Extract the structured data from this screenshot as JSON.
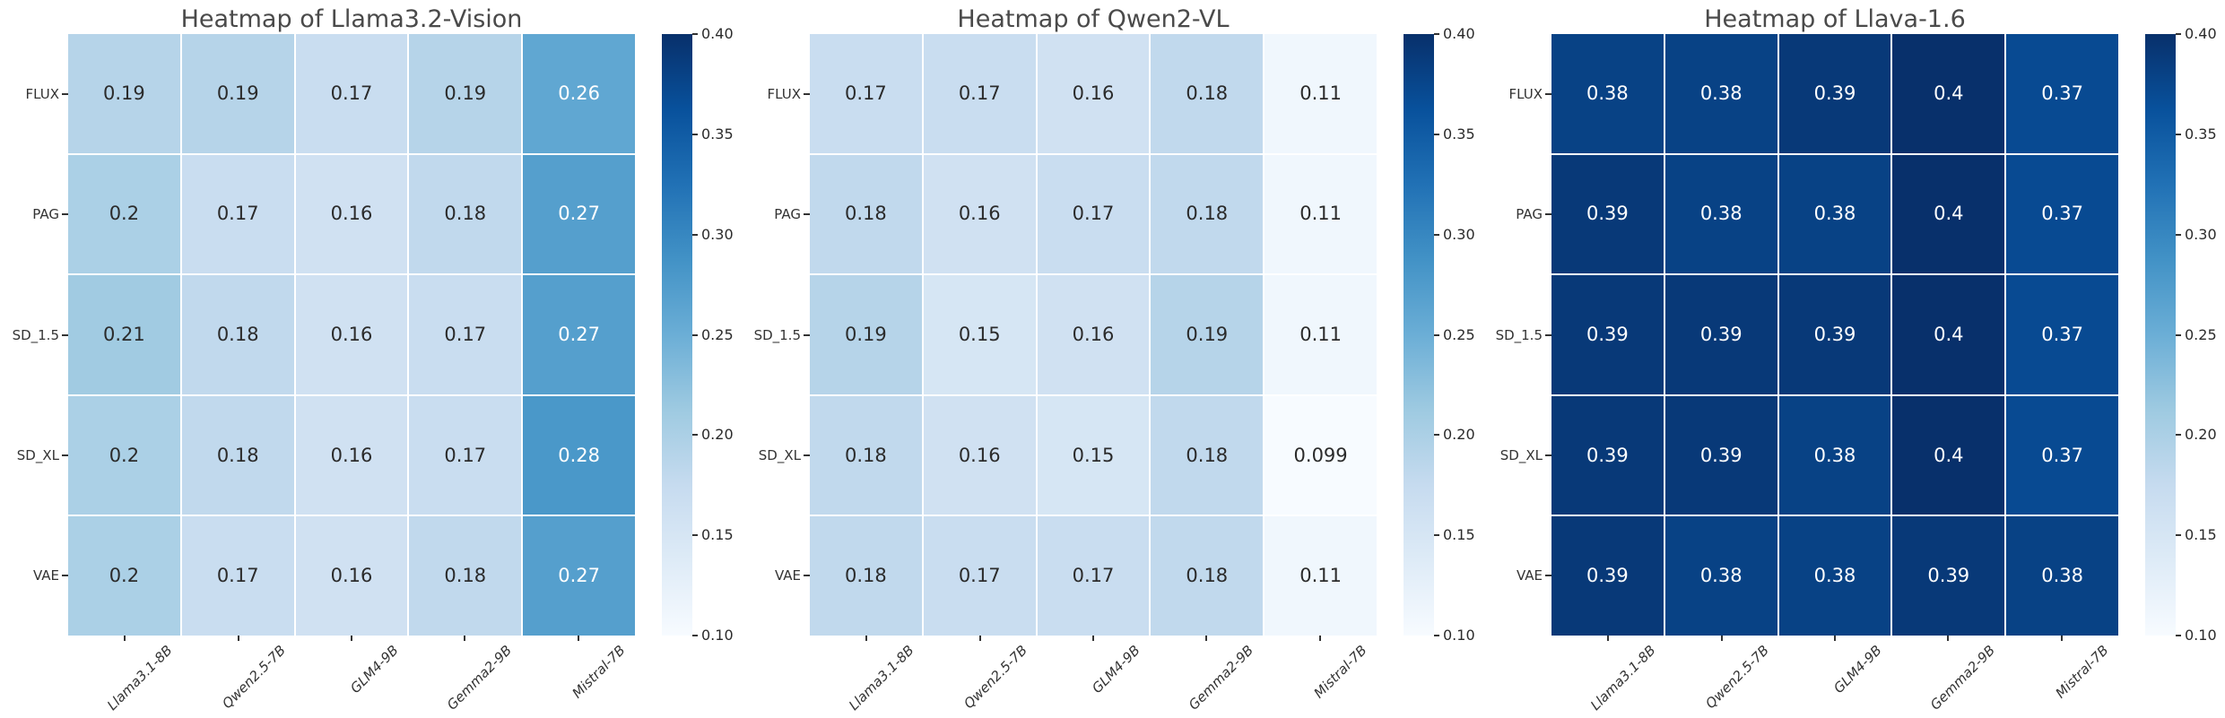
{
  "figure": {
    "background": "#ffffff",
    "colormap_name": "Blues",
    "colormap_min_hex": "#f7fbff",
    "colormap_max_hex": "#08306b"
  },
  "chart_data": [
    {
      "type": "heatmap",
      "title": "Heatmap of Llama3.2-Vision",
      "rows": [
        "FLUX",
        "PAG",
        "SD_1.5",
        "SD_XL",
        "VAE"
      ],
      "columns": [
        "Llama3.1-8B",
        "Qwen2.5-7B",
        "GLM4-9B",
        "Gemma2-9B",
        "Mistral-7B"
      ],
      "values": [
        [
          0.19,
          0.19,
          0.17,
          0.19,
          0.26
        ],
        [
          0.2,
          0.17,
          0.16,
          0.18,
          0.27
        ],
        [
          0.21,
          0.18,
          0.16,
          0.17,
          0.27
        ],
        [
          0.2,
          0.18,
          0.16,
          0.17,
          0.28
        ],
        [
          0.2,
          0.17,
          0.16,
          0.18,
          0.27
        ]
      ],
      "vmin": 0.1,
      "vmax": 0.4,
      "colormap": "Blues",
      "colorbar_ticks": [
        "0.40",
        "0.35",
        "0.30",
        "0.25",
        "0.20",
        "0.15",
        "0.10"
      ],
      "legend_position": "right"
    },
    {
      "type": "heatmap",
      "title": "Heatmap of Qwen2-VL",
      "rows": [
        "FLUX",
        "PAG",
        "SD_1.5",
        "SD_XL",
        "VAE"
      ],
      "columns": [
        "Llama3.1-8B",
        "Qwen2.5-7B",
        "GLM4-9B",
        "Gemma2-9B",
        "Mistral-7B"
      ],
      "values": [
        [
          0.17,
          0.17,
          0.16,
          0.18,
          0.11
        ],
        [
          0.18,
          0.16,
          0.17,
          0.18,
          0.11
        ],
        [
          0.19,
          0.15,
          0.16,
          0.19,
          0.11
        ],
        [
          0.18,
          0.16,
          0.15,
          0.18,
          0.099
        ],
        [
          0.18,
          0.17,
          0.17,
          0.18,
          0.11
        ]
      ],
      "vmin": 0.1,
      "vmax": 0.4,
      "colormap": "Blues",
      "colorbar_ticks": [
        "0.40",
        "0.35",
        "0.30",
        "0.25",
        "0.20",
        "0.15",
        "0.10"
      ],
      "legend_position": "right"
    },
    {
      "type": "heatmap",
      "title": "Heatmap of Llava-1.6",
      "rows": [
        "FLUX",
        "PAG",
        "SD_1.5",
        "SD_XL",
        "VAE"
      ],
      "columns": [
        "Llama3.1-8B",
        "Qwen2.5-7B",
        "GLM4-9B",
        "Gemma2-9B",
        "Mistral-7B"
      ],
      "values": [
        [
          0.38,
          0.38,
          0.39,
          0.4,
          0.37
        ],
        [
          0.39,
          0.38,
          0.38,
          0.4,
          0.37
        ],
        [
          0.39,
          0.39,
          0.39,
          0.4,
          0.37
        ],
        [
          0.39,
          0.39,
          0.38,
          0.4,
          0.37
        ],
        [
          0.39,
          0.38,
          0.38,
          0.39,
          0.38
        ]
      ],
      "vmin": 0.1,
      "vmax": 0.4,
      "colormap": "Blues",
      "colorbar_ticks": [
        "0.40",
        "0.35",
        "0.30",
        "0.25",
        "0.20",
        "0.15",
        "0.10"
      ],
      "legend_position": "right"
    }
  ]
}
